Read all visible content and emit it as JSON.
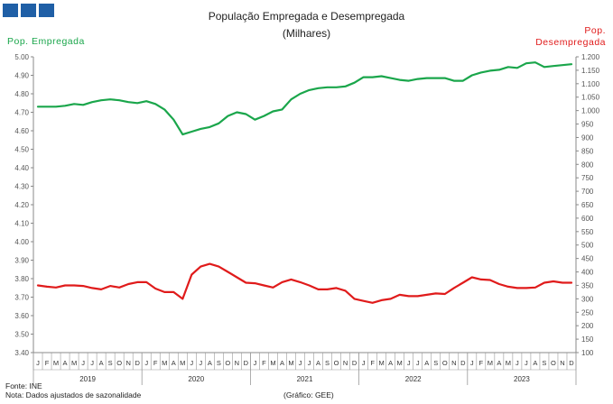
{
  "header": {
    "title": "População Empregada e Desempregada",
    "subtitle": "(Milhares)"
  },
  "colors": {
    "employed": "#1aa64b",
    "unemployed": "#e01b1b",
    "logo": "#1f5fa6"
  },
  "footer": {
    "source": "Fonte: INE",
    "note": "Nota: Dados ajustados de sazonalidade",
    "credit": "(Gráfico: GEE)"
  },
  "chart_data": {
    "type": "line",
    "title": "População Empregada e Desempregada",
    "subtitle": "(Milhares)",
    "ylabel_left": "Pop. Empregada",
    "ylabel_right": "Pop. Desempregada",
    "ylim_left": [
      3.4,
      5.0
    ],
    "ylim_right": [
      100,
      1200
    ],
    "yticks_left": [
      "3.40",
      "3.50",
      "3.60",
      "3.70",
      "3.80",
      "3.90",
      "4.00",
      "4.10",
      "4.20",
      "4.30",
      "4.40",
      "4.50",
      "4.60",
      "4.70",
      "4.80",
      "4.90",
      "5.00"
    ],
    "yticks_right": [
      "100",
      "150",
      "200",
      "250",
      "300",
      "350",
      "400",
      "450",
      "500",
      "550",
      "600",
      "650",
      "700",
      "750",
      "800",
      "850",
      "900",
      "950",
      "1.000",
      "1.050",
      "1.100",
      "1.150",
      "1.200"
    ],
    "month_labels": [
      "J",
      "F",
      "M",
      "A",
      "M",
      "J",
      "J",
      "A",
      "S",
      "O",
      "N",
      "D"
    ],
    "years": [
      "2019",
      "2020",
      "2021",
      "2022",
      "2023"
    ],
    "series": [
      {
        "name": "Pop. Empregada",
        "axis": "left",
        "values": [
          4.73,
          4.73,
          4.73,
          4.735,
          4.745,
          4.74,
          4.755,
          4.765,
          4.77,
          4.765,
          4.755,
          4.75,
          4.76,
          4.745,
          4.715,
          4.66,
          4.58,
          4.595,
          4.61,
          4.62,
          4.64,
          4.68,
          4.7,
          4.69,
          4.66,
          4.68,
          4.705,
          4.715,
          4.77,
          4.8,
          4.82,
          4.83,
          4.835,
          4.835,
          4.84,
          4.86,
          4.89,
          4.89,
          4.895,
          4.885,
          4.875,
          4.87,
          4.88,
          4.885,
          4.885,
          4.885,
          4.87,
          4.87,
          4.9,
          4.915,
          4.925,
          4.93,
          4.945,
          4.94,
          4.965,
          4.97,
          4.945,
          4.95,
          4.955,
          4.96
        ]
      },
      {
        "name": "Pop. Desempregada",
        "axis": "right",
        "values": [
          350,
          345,
          342,
          350,
          350,
          348,
          340,
          335,
          348,
          342,
          355,
          362,
          362,
          338,
          325,
          325,
          300,
          390,
          420,
          430,
          420,
          400,
          380,
          360,
          358,
          350,
          342,
          362,
          372,
          362,
          350,
          335,
          335,
          340,
          330,
          300,
          292,
          285,
          295,
          300,
          315,
          310,
          310,
          315,
          320,
          318,
          340,
          360,
          380,
          372,
          370,
          355,
          345,
          340,
          340,
          342,
          360,
          365,
          360,
          360
        ]
      }
    ]
  }
}
